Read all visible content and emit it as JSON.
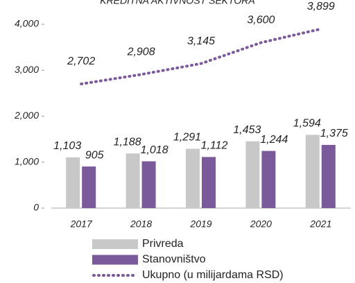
{
  "chart_data": {
    "type": "bar-line",
    "title": "KREDITNA AKTIVNOST SEKTORA",
    "categories": [
      "2017",
      "2018",
      "2019",
      "2020",
      "2021"
    ],
    "ylim": [
      0,
      4000
    ],
    "yticks": [
      0,
      {
        "value": 1000,
        "label": "1,000"
      },
      {
        "value": 2000,
        "label": "2,000"
      },
      {
        "value": 3000,
        "label": "3,000"
      },
      {
        "value": 4000,
        "label": "4,000"
      }
    ],
    "series": [
      {
        "name": "Privreda",
        "type": "bar",
        "color": "#c8c8c8",
        "values": [
          1103,
          1188,
          1291,
          1453,
          1594
        ],
        "value_labels": [
          "1,103",
          "1,188",
          "1,291",
          "1,453",
          "1,594"
        ]
      },
      {
        "name": "Stanovništvo",
        "type": "bar",
        "color": "#7b5a9c",
        "values": [
          905,
          1018,
          1112,
          1244,
          1375
        ],
        "value_labels": [
          "905",
          "1,018",
          "1,112",
          "1,244",
          "1,375"
        ]
      },
      {
        "name": "Ukupno (u milijardama RSD)",
        "type": "line",
        "color": "#7b5a9c",
        "values": [
          2702,
          2908,
          3145,
          3600,
          3899
        ],
        "value_labels": [
          "2,702",
          "2,908",
          "3,145",
          "3,600",
          "3,899"
        ]
      }
    ]
  }
}
